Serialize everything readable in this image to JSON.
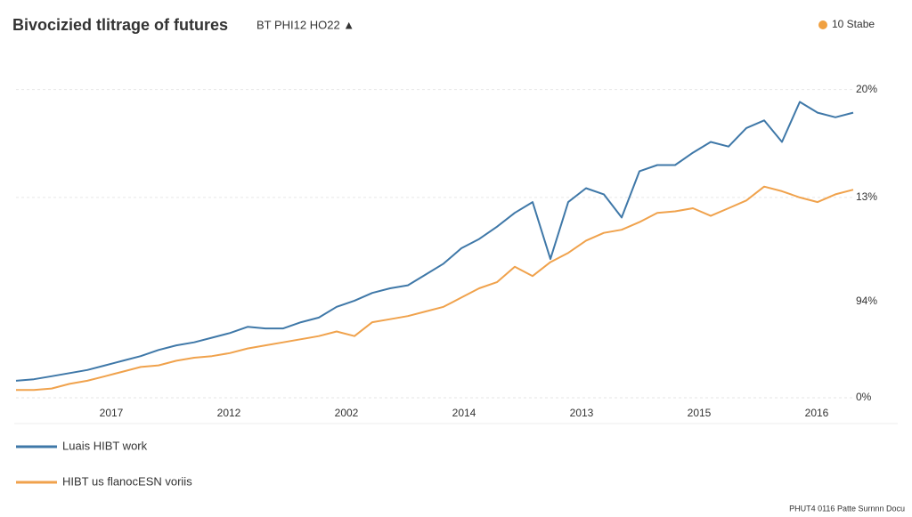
{
  "chart_data": {
    "type": "line",
    "title": "Bivocizied tlitrage of futures",
    "subtitle": "BT PHI12 HO22 ▲",
    "badge": "10 Stabe",
    "badge_color": "#f0a040",
    "x_labels": [
      "2017",
      "2012",
      "2002",
      "2014",
      "2013",
      "2015",
      "2016"
    ],
    "ylim": [
      0,
      22
    ],
    "yticks": [
      {
        "value": 0,
        "label": "0%"
      },
      {
        "value": 13,
        "label": "13%"
      },
      {
        "value": 20,
        "label": "20%"
      }
    ],
    "annotation": "94%",
    "grid": true,
    "footer": "PHUT4 0116 Patte Surnnn Docu",
    "series": [
      {
        "name": "Luais HIBT work",
        "color": "#3f78a8",
        "values": [
          1.1,
          1.2,
          1.4,
          1.6,
          1.8,
          2.1,
          2.4,
          2.7,
          3.1,
          3.4,
          3.6,
          3.9,
          4.2,
          4.6,
          4.5,
          4.5,
          4.9,
          5.2,
          5.9,
          6.3,
          6.8,
          7.1,
          7.3,
          8.0,
          8.7,
          9.7,
          10.3,
          11.1,
          12.0,
          12.7,
          9.0,
          12.7,
          13.6,
          13.2,
          11.7,
          14.7,
          15.1,
          15.1,
          15.9,
          16.6,
          16.3,
          17.5,
          18.0,
          16.6,
          19.2,
          18.5,
          18.2,
          18.5
        ]
      },
      {
        "name": "HIBT us flanocESN voriis",
        "color": "#f0a24c",
        "values": [
          0.5,
          0.5,
          0.6,
          0.9,
          1.1,
          1.4,
          1.7,
          2.0,
          2.1,
          2.4,
          2.6,
          2.7,
          2.9,
          3.2,
          3.4,
          3.6,
          3.8,
          4.0,
          4.3,
          4.0,
          4.9,
          5.1,
          5.3,
          5.6,
          5.9,
          6.5,
          7.1,
          7.5,
          8.5,
          7.9,
          8.8,
          9.4,
          10.2,
          10.7,
          10.9,
          11.4,
          12.0,
          12.1,
          12.3,
          11.8,
          12.3,
          12.8,
          13.7,
          13.4,
          13.0,
          12.7,
          13.2,
          13.5
        ]
      }
    ]
  }
}
